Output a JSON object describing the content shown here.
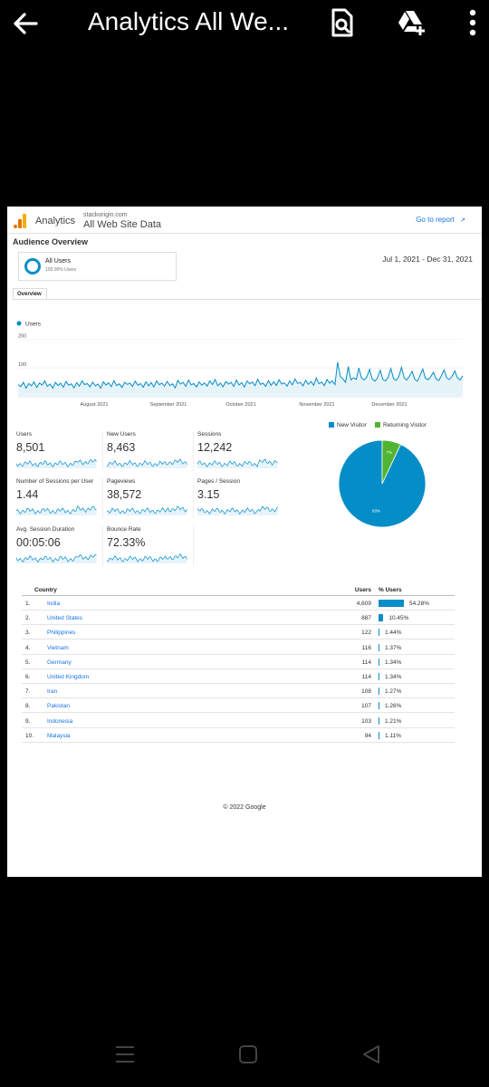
{
  "appbar": {
    "title": "Analytics All We...",
    "back_icon": "arrow-left-icon",
    "search_icon": "document-search-icon",
    "drive_icon": "drive-add-icon",
    "menu_icon": "more-vert-icon"
  },
  "report": {
    "app_name": "Analytics",
    "property_small": "stackorigin.com",
    "property_name": "All Web Site Data",
    "goto_link": "Go to report",
    "section_title": "Audience Overview",
    "segment_name": "All Users",
    "segment_sub": "100.00% Users",
    "date_range": "Jul 1, 2021 - Dec 31, 2021",
    "tab": "Overview",
    "footer": "© 2022 Google"
  },
  "chart_data": [
    {
      "type": "line",
      "series": [
        {
          "name": "Users",
          "values": [
            42,
            35,
            50,
            30,
            46,
            38,
            52,
            32,
            48,
            41,
            55,
            36,
            44,
            30,
            50,
            39,
            47,
            33,
            53,
            40,
            45,
            31,
            49,
            37,
            55,
            42,
            46,
            34,
            51,
            38,
            44,
            30,
            52,
            41,
            48,
            35,
            56,
            39,
            45,
            32,
            50,
            43,
            47,
            36,
            54,
            40,
            46,
            33,
            52,
            38,
            49,
            34,
            55,
            42,
            47,
            37,
            53,
            39,
            45,
            31,
            57,
            44,
            50,
            36,
            58,
            41,
            46,
            34,
            52,
            40,
            48,
            37,
            55,
            42,
            60,
            38,
            47,
            35,
            53,
            44,
            50,
            36,
            58,
            41,
            49,
            34,
            55,
            45,
            51,
            38,
            61,
            43,
            47,
            36,
            56,
            40,
            52,
            39,
            59,
            44,
            48,
            37,
            55,
            41,
            62,
            46,
            50,
            38,
            57,
            43,
            53,
            40,
            65,
            45,
            51,
            39,
            60,
            47,
            55,
            42,
            120,
            70,
            62,
            50,
            105,
            58,
            66,
            60,
            100,
            64,
            58,
            70,
            95,
            62,
            54,
            66,
            92,
            60,
            55,
            68,
            98,
            63,
            57,
            70,
            102,
            66,
            58,
            72,
            88,
            60,
            54,
            75,
            96,
            64,
            59,
            70,
            85,
            62,
            56,
            74,
            93,
            65,
            60,
            71,
            90,
            66,
            58,
            73
          ]
        }
      ],
      "x_tick_labels": [
        "August 2021",
        "September 2021",
        "October 2021",
        "November 2021",
        "December 2021"
      ],
      "y_tick_labels": [
        "200",
        "100"
      ],
      "ylim": [
        0,
        220
      ],
      "grid": true,
      "legend": "top-left",
      "colors": {
        "line": "#058dc7",
        "fill": "#e6f4fa"
      }
    },
    {
      "type": "pie",
      "series": [
        {
          "name": "New Visitor",
          "values": [
            93
          ],
          "label": "93%",
          "color": "#058dc7"
        },
        {
          "name": "Returning Visitor",
          "values": [
            7
          ],
          "label": "7%",
          "color": "#50b432"
        }
      ],
      "legend": "top"
    }
  ],
  "metrics": [
    {
      "label": "Users",
      "value": "8,501"
    },
    {
      "label": "New Users",
      "value": "8,463"
    },
    {
      "label": "Sessions",
      "value": "12,242"
    },
    {
      "label": "Number of Sessions per User",
      "value": "1.44"
    },
    {
      "label": "Pageviews",
      "value": "38,572"
    },
    {
      "label": "Pages / Session",
      "value": "3.15"
    },
    {
      "label": "Avg. Session Duration",
      "value": "00:05:06"
    },
    {
      "label": "Bounce Rate",
      "value": "72.33%"
    }
  ],
  "country_table": {
    "headers": {
      "country": "Country",
      "users": "Users",
      "pct": "% Users"
    },
    "rows": [
      {
        "idx": "1.",
        "country": "India",
        "users": "4,609",
        "pct": "54.28%",
        "share": 54.28
      },
      {
        "idx": "2.",
        "country": "United States",
        "users": "887",
        "pct": "10.45%",
        "share": 10.45
      },
      {
        "idx": "3.",
        "country": "Philippines",
        "users": "122",
        "pct": "1.44%",
        "share": 1.44
      },
      {
        "idx": "4.",
        "country": "Vietnam",
        "users": "116",
        "pct": "1.37%",
        "share": 1.37
      },
      {
        "idx": "5.",
        "country": "Germany",
        "users": "114",
        "pct": "1.34%",
        "share": 1.34
      },
      {
        "idx": "6.",
        "country": "United Kingdom",
        "users": "114",
        "pct": "1.34%",
        "share": 1.34
      },
      {
        "idx": "7.",
        "country": "Iran",
        "users": "108",
        "pct": "1.27%",
        "share": 1.27
      },
      {
        "idx": "8.",
        "country": "Pakistan",
        "users": "107",
        "pct": "1.26%",
        "share": 1.26
      },
      {
        "idx": "9.",
        "country": "Indonesia",
        "users": "103",
        "pct": "1.21%",
        "share": 1.21
      },
      {
        "idx": "10.",
        "country": "Malaysia",
        "users": "94",
        "pct": "1.11%",
        "share": 1.11
      }
    ]
  },
  "navbar": {
    "recents_icon": "recents-icon",
    "home_icon": "home-icon",
    "back_icon": "back-triangle-icon"
  }
}
